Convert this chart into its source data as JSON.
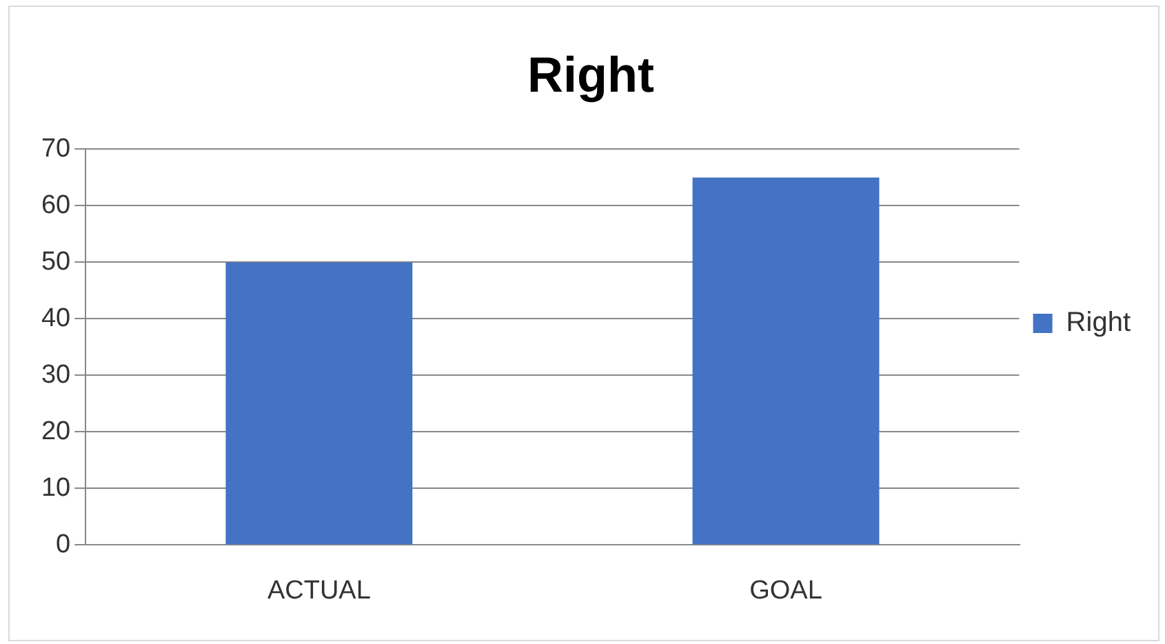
{
  "chart_data": {
    "type": "bar",
    "title": "Right",
    "categories": [
      "ACTUAL",
      "GOAL"
    ],
    "series": [
      {
        "name": "Right",
        "color": "#4472c4",
        "values": [
          50,
          65
        ]
      }
    ],
    "ylim": [
      0,
      70
    ],
    "yticks": [
      0,
      10,
      20,
      30,
      40,
      50,
      60,
      70
    ],
    "grid": "y",
    "legend": "right"
  }
}
